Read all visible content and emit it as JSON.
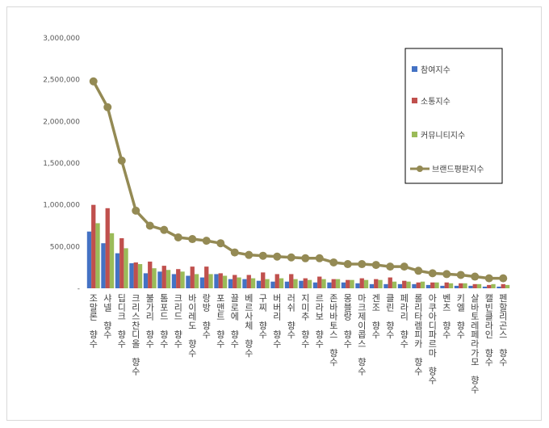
{
  "chart_data": {
    "type": "bar",
    "title": "",
    "xlabel": "",
    "ylabel": "",
    "ylim": [
      0,
      3000000
    ],
    "y_ticks": [
      "-",
      "500,000",
      "1,000,000",
      "1,500,000",
      "2,000,000",
      "2,500,000",
      "3,000,000"
    ],
    "grid": false,
    "legend_position": "top-right",
    "categories": [
      "조말론 향수",
      "샤넬 향수",
      "딥디크 향수",
      "크리스찬디올 향수",
      "불가리 향수",
      "톰포드 향수",
      "크리드 향수",
      "바이레도 향수",
      "랑방 향수",
      "포맨트 향수",
      "끌로에 향수",
      "베르사체 향수",
      "구찌 향수",
      "버버리 향수",
      "러쉬 향수",
      "지미추 향수",
      "르라보 향수",
      "존바바토스 향수",
      "몽블랑 향수",
      "마크제이콥스 향수",
      "겐조 향수",
      "클린 향수",
      "페라리 향수",
      "롤리타렘피카 향수",
      "아쿠아디파르마 향수",
      "벤츠 향수",
      "키엘 향수",
      "살바토레페라가모 향수",
      "캘빈클라인 향수",
      "펜할리곤스 향수"
    ],
    "series": [
      {
        "name": "참여지수",
        "kind": "bar",
        "color": "#4472c4",
        "values": [
          680000,
          540000,
          420000,
          300000,
          180000,
          200000,
          170000,
          150000,
          130000,
          170000,
          110000,
          110000,
          90000,
          80000,
          80000,
          90000,
          70000,
          70000,
          70000,
          60000,
          50000,
          50000,
          50000,
          50000,
          40000,
          30000,
          30000,
          30000,
          20000,
          20000
        ]
      },
      {
        "name": "소통지수",
        "kind": "bar",
        "color": "#c0504d",
        "values": [
          1000000,
          960000,
          600000,
          310000,
          320000,
          270000,
          230000,
          260000,
          260000,
          180000,
          160000,
          160000,
          190000,
          170000,
          170000,
          120000,
          140000,
          110000,
          100000,
          120000,
          110000,
          130000,
          90000,
          70000,
          70000,
          70000,
          60000,
          50000,
          40000,
          50000
        ]
      },
      {
        "name": "커뮤니티지수",
        "kind": "bar",
        "color": "#9bbb59",
        "values": [
          780000,
          660000,
          480000,
          290000,
          240000,
          220000,
          200000,
          170000,
          170000,
          150000,
          130000,
          120000,
          110000,
          120000,
          110000,
          100000,
          110000,
          110000,
          100000,
          100000,
          100000,
          80000,
          80000,
          80000,
          70000,
          60000,
          60000,
          50000,
          50000,
          40000
        ]
      },
      {
        "name": "브랜드평판지수",
        "kind": "line",
        "color": "#948a54",
        "values": [
          2480000,
          2170000,
          1530000,
          930000,
          750000,
          700000,
          610000,
          590000,
          570000,
          540000,
          430000,
          400000,
          390000,
          380000,
          370000,
          360000,
          360000,
          310000,
          290000,
          290000,
          280000,
          260000,
          260000,
          210000,
          180000,
          170000,
          160000,
          140000,
          120000,
          120000
        ]
      }
    ]
  }
}
